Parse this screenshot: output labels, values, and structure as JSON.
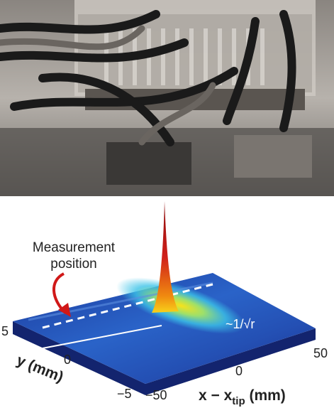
{
  "annotation": {
    "line1": "Measurement",
    "line2": "position"
  },
  "scaling_label": "~1/√r",
  "y_axis": {
    "label": "y (mm)",
    "ticks": [
      "5",
      "0",
      "−5"
    ]
  },
  "x_axis": {
    "label_main": "x − x",
    "label_sub": "tip",
    "label_unit": " (mm)",
    "ticks": [
      "−50",
      "0",
      "50"
    ]
  }
}
